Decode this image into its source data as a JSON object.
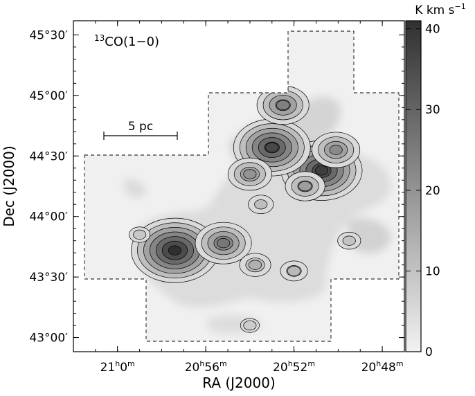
{
  "chart_data": {
    "type": "heatmap",
    "title": "",
    "map_label": {
      "iso": "13",
      "mol": "CO(1−0)"
    },
    "xlabel": "RA (J2000)",
    "ylabel": "Dec (J2000)",
    "x_ticks": [
      {
        "value": 21.0,
        "h": "21",
        "m": "0"
      },
      {
        "value": 20.9333,
        "h": "20",
        "m": "56"
      },
      {
        "value": 20.8667,
        "h": "20",
        "m": "52"
      },
      {
        "value": 20.8,
        "h": "20",
        "m": "48"
      }
    ],
    "y_ticks": [
      {
        "value": 45.5,
        "label": "45°30′"
      },
      {
        "value": 45.0,
        "label": "45°00′"
      },
      {
        "value": 44.5,
        "label": "44°30′"
      },
      {
        "value": 44.0,
        "label": "44°00′"
      },
      {
        "value": 43.5,
        "label": "43°30′"
      },
      {
        "value": 43.0,
        "label": "43°00′"
      }
    ],
    "xlim": [
      21.0333,
      20.7833
    ],
    "ylim": [
      42.8833,
      45.6167
    ],
    "scale_bar": {
      "label": "5 pc"
    },
    "colorbar": {
      "label": "K km s",
      "label_sup": "−1",
      "range": [
        0,
        41
      ],
      "ticks": [
        0,
        10,
        20,
        30,
        40
      ],
      "tick_labels": [
        "0",
        "10",
        "20",
        "30",
        "40"
      ],
      "color_low": "#f2f2f2",
      "color_high": "#303030"
    },
    "peaks": [
      {
        "ra": 20.9567,
        "dec": 43.72,
        "value": 41
      },
      {
        "ra": 20.8458,
        "dec": 44.38,
        "value": 38
      },
      {
        "ra": 20.8833,
        "dec": 44.57,
        "value": 36
      },
      {
        "ra": 20.92,
        "dec": 43.78,
        "value": 26
      },
      {
        "ra": 20.875,
        "dec": 44.92,
        "value": 24
      },
      {
        "ra": 20.835,
        "dec": 44.55,
        "value": 22
      },
      {
        "ra": 20.9,
        "dec": 44.35,
        "value": 20
      },
      {
        "ra": 20.8583,
        "dec": 44.25,
        "value": 18
      },
      {
        "ra": 20.896,
        "dec": 43.6,
        "value": 14
      },
      {
        "ra": 20.8667,
        "dec": 43.55,
        "value": 12
      },
      {
        "ra": 20.825,
        "dec": 43.8,
        "value": 10
      },
      {
        "ra": 20.9833,
        "dec": 43.85,
        "value": 9
      },
      {
        "ra": 20.9,
        "dec": 43.1,
        "value": 8
      },
      {
        "ra": 20.8917,
        "dec": 44.1,
        "value": 11
      }
    ]
  }
}
